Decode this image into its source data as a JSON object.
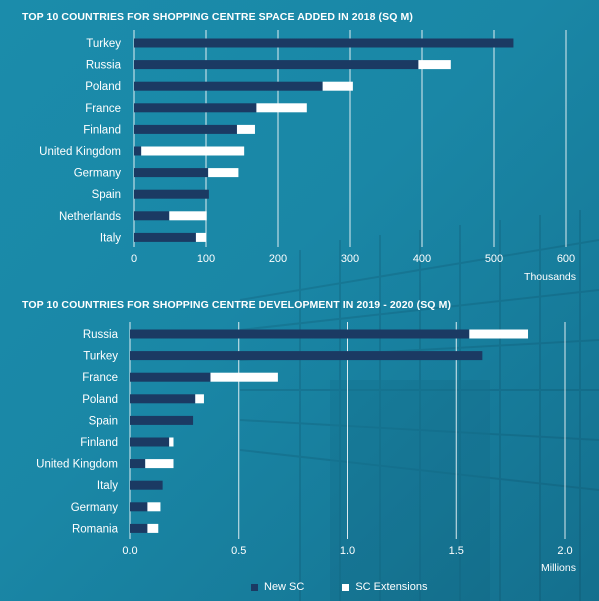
{
  "colors": {
    "new_sc": "#1b3a63",
    "sc_extensions": "#ffffff",
    "background": "#1a87a6",
    "grid": "#ffffff"
  },
  "legend": {
    "new_sc": "New SC",
    "sc_extensions": "SC Extensions"
  },
  "chart_data": [
    {
      "type": "bar",
      "orientation": "horizontal",
      "stacked": true,
      "title": "TOP 10 COUNTRIES FOR SHOPPING CENTRE SPACE ADDED IN 2018 (SQ M)",
      "unit_label": "Thousands",
      "categories": [
        "Turkey",
        "Russia",
        "Poland",
        "France",
        "Finland",
        "United Kingdom",
        "Germany",
        "Spain",
        "Netherlands",
        "Italy"
      ],
      "series": [
        {
          "name": "New SC",
          "values": [
            527,
            395,
            262,
            170,
            143,
            10,
            103,
            104,
            49,
            86
          ]
        },
        {
          "name": "SC Extensions",
          "values": [
            0,
            45,
            42,
            70,
            25,
            143,
            42,
            0,
            52,
            14
          ]
        }
      ],
      "xlim": [
        0,
        600
      ],
      "xticks": [
        "0",
        "100",
        "200",
        "300",
        "400",
        "500",
        "600"
      ],
      "grid": true,
      "legend_position": "bottom"
    },
    {
      "type": "bar",
      "orientation": "horizontal",
      "stacked": true,
      "title": "TOP 10 COUNTRIES FOR SHOPPING CENTRE DEVELOPMENT IN 2019 - 2020 (SQ M)",
      "unit_label": "Millions",
      "categories": [
        "Russia",
        "Turkey",
        "France",
        "Poland",
        "Spain",
        "Finland",
        "United Kingdom",
        "Italy",
        "Germany",
        "Romania"
      ],
      "series": [
        {
          "name": "New SC",
          "values": [
            1.56,
            1.62,
            0.37,
            0.3,
            0.29,
            0.18,
            0.07,
            0.15,
            0.08,
            0.08
          ]
        },
        {
          "name": "SC Extensions",
          "values": [
            0.27,
            0.0,
            0.31,
            0.04,
            0.0,
            0.02,
            0.13,
            0.0,
            0.06,
            0.05
          ]
        }
      ],
      "xlim": [
        0,
        2.0
      ],
      "xticks": [
        "0.0",
        "0.5",
        "1.0",
        "1.5",
        "2.0"
      ],
      "grid": true,
      "legend_position": "bottom"
    }
  ]
}
